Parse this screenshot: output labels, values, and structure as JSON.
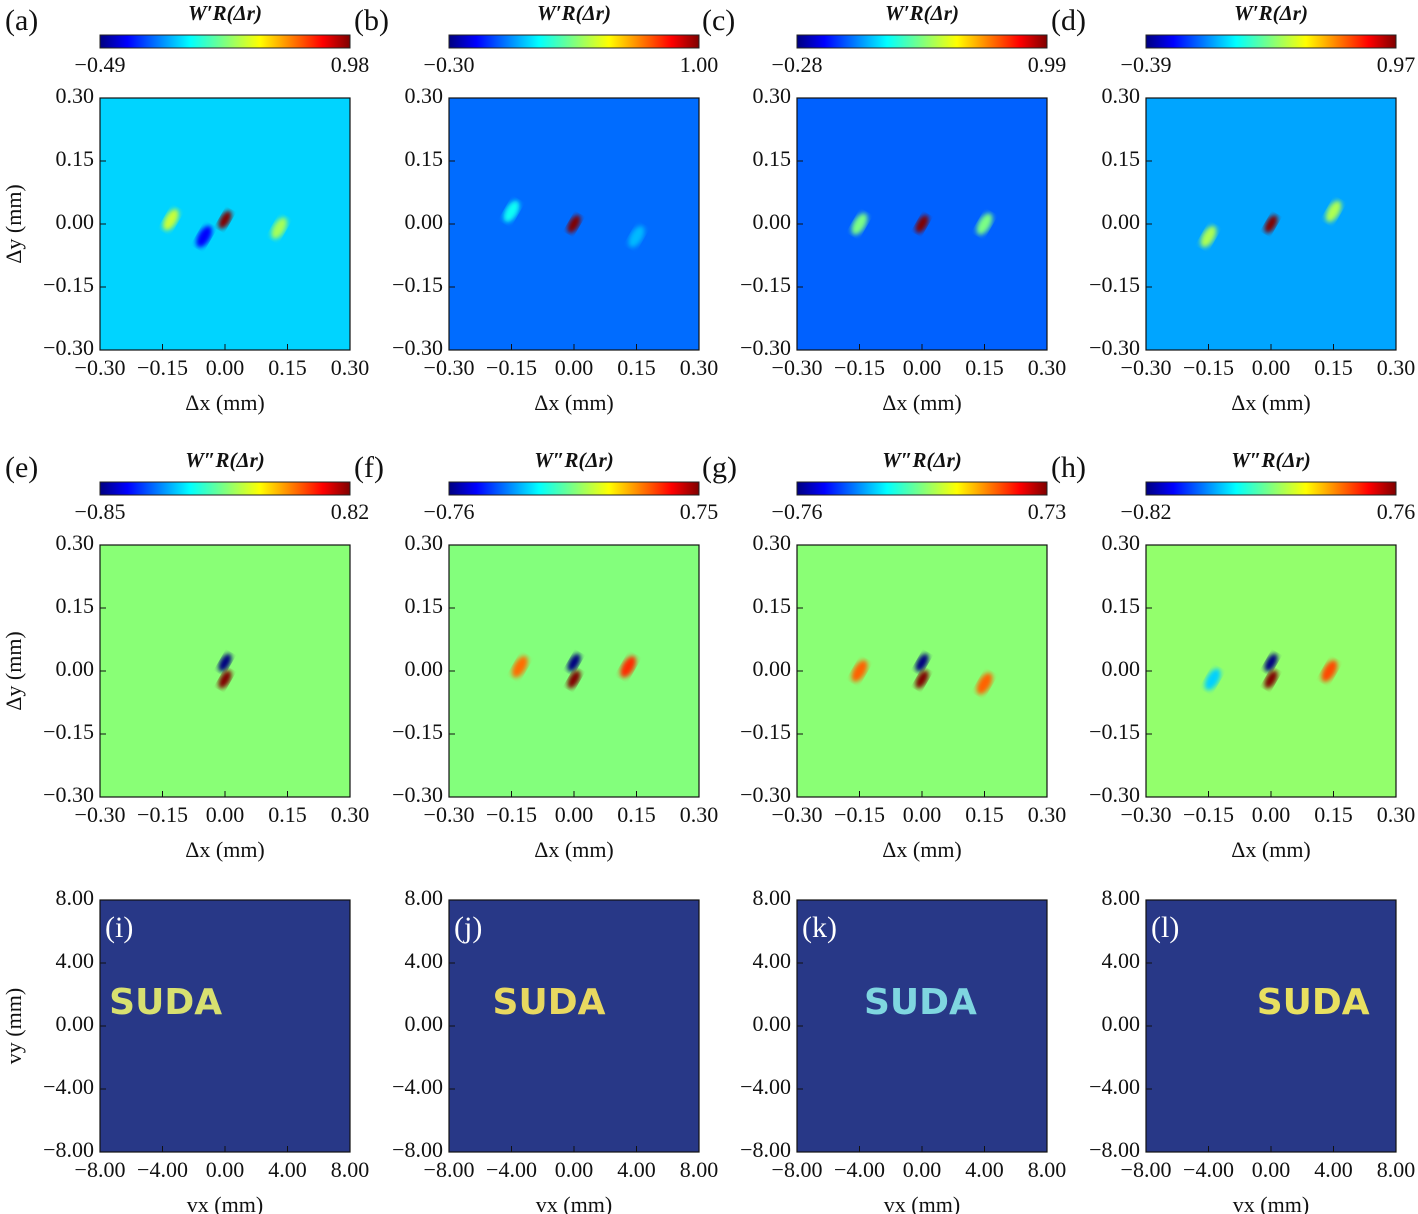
{
  "chart_data": [
    {
      "type": "heatmap",
      "panel": "(a)",
      "colorbar_label": "W′R(Δr)",
      "colorbar_ticks": [
        {
          "value": -0.49,
          "label": "−0.49"
        },
        {
          "value": 0.98,
          "label": "0.98"
        }
      ],
      "xlim": [
        -0.3,
        0.3
      ],
      "ylim": [
        -0.3,
        0.3
      ],
      "xticks": [
        {
          "value": -0.3,
          "label": "−0.30"
        },
        {
          "value": -0.15,
          "label": "−0.15"
        },
        {
          "value": 0,
          "label": "0.00"
        },
        {
          "value": 0.15,
          "label": "0.15"
        },
        {
          "value": 0.3,
          "label": "0.30"
        }
      ],
      "yticks": [
        {
          "value": -0.3,
          "label": "−0.30"
        },
        {
          "value": -0.15,
          "label": "−0.15"
        },
        {
          "value": 0,
          "label": "0.00"
        },
        {
          "value": 0.15,
          "label": "0.15"
        },
        {
          "value": 0.3,
          "label": "0.30"
        }
      ],
      "xlabel": "Δx (mm)",
      "ylabel": "Δy (mm)",
      "background": 0,
      "peaks": [
        {
          "x": 0,
          "y": 0.01,
          "value": 0.98
        },
        {
          "x": -0.13,
          "y": 0.01,
          "value": 0.35
        },
        {
          "x": 0.13,
          "y": -0.01,
          "value": 0.3
        },
        {
          "x": -0.05,
          "y": -0.03,
          "value": -0.3
        }
      ]
    },
    {
      "type": "heatmap",
      "panel": "(b)",
      "colorbar_label": "W′R(Δr)",
      "colorbar_ticks": [
        {
          "value": -0.3,
          "label": "−0.30"
        },
        {
          "value": 1,
          "label": "1.00"
        }
      ],
      "xlim": [
        -0.3,
        0.3
      ],
      "ylim": [
        -0.3,
        0.3
      ],
      "xticks": [
        {
          "value": -0.3,
          "label": "−0.30"
        },
        {
          "value": -0.15,
          "label": "−0.15"
        },
        {
          "value": 0,
          "label": "0.00"
        },
        {
          "value": 0.15,
          "label": "0.15"
        },
        {
          "value": 0.3,
          "label": "0.30"
        }
      ],
      "yticks": [
        {
          "value": -0.3,
          "label": "−0.30"
        },
        {
          "value": -0.15,
          "label": "−0.15"
        },
        {
          "value": 0,
          "label": "0.00"
        },
        {
          "value": 0.15,
          "label": "0.15"
        },
        {
          "value": 0.3,
          "label": "0.30"
        }
      ],
      "xlabel": "Δx (mm)",
      "background": 0,
      "peaks": [
        {
          "x": 0,
          "y": 0,
          "value": 1
        },
        {
          "x": -0.15,
          "y": 0.03,
          "value": 0.2
        },
        {
          "x": 0.15,
          "y": -0.03,
          "value": 0.1
        }
      ]
    },
    {
      "type": "heatmap",
      "panel": "(c)",
      "colorbar_label": "W′R(Δr)",
      "colorbar_ticks": [
        {
          "value": -0.28,
          "label": "−0.28"
        },
        {
          "value": 0.99,
          "label": "0.99"
        }
      ],
      "xlim": [
        -0.3,
        0.3
      ],
      "ylim": [
        -0.3,
        0.3
      ],
      "xticks": [
        {
          "value": -0.3,
          "label": "−0.30"
        },
        {
          "value": -0.15,
          "label": "−0.15"
        },
        {
          "value": 0,
          "label": "0.00"
        },
        {
          "value": 0.15,
          "label": "0.15"
        },
        {
          "value": 0.3,
          "label": "0.30"
        }
      ],
      "yticks": [
        {
          "value": -0.3,
          "label": "−0.30"
        },
        {
          "value": -0.15,
          "label": "−0.15"
        },
        {
          "value": 0,
          "label": "0.00"
        },
        {
          "value": 0.15,
          "label": "0.15"
        },
        {
          "value": 0.3,
          "label": "0.30"
        }
      ],
      "xlabel": "Δx (mm)",
      "background": 0,
      "peaks": [
        {
          "x": 0,
          "y": 0,
          "value": 0.99
        },
        {
          "x": -0.15,
          "y": 0,
          "value": 0.35
        },
        {
          "x": 0.15,
          "y": 0,
          "value": 0.35
        }
      ]
    },
    {
      "type": "heatmap",
      "panel": "(d)",
      "colorbar_label": "W′R(Δr)",
      "colorbar_ticks": [
        {
          "value": -0.39,
          "label": "−0.39"
        },
        {
          "value": 0.97,
          "label": "0.97"
        }
      ],
      "xlim": [
        -0.3,
        0.3
      ],
      "ylim": [
        -0.3,
        0.3
      ],
      "xticks": [
        {
          "value": -0.3,
          "label": "−0.30"
        },
        {
          "value": -0.15,
          "label": "−0.15"
        },
        {
          "value": 0,
          "label": "0.00"
        },
        {
          "value": 0.15,
          "label": "0.15"
        },
        {
          "value": 0.3,
          "label": "0.30"
        }
      ],
      "yticks": [
        {
          "value": -0.3,
          "label": "−0.30"
        },
        {
          "value": -0.15,
          "label": "−0.15"
        },
        {
          "value": 0,
          "label": "0.00"
        },
        {
          "value": 0.15,
          "label": "0.15"
        },
        {
          "value": 0.3,
          "label": "0.30"
        }
      ],
      "xlabel": "Δx (mm)",
      "background": 0,
      "peaks": [
        {
          "x": 0,
          "y": 0,
          "value": 0.97
        },
        {
          "x": -0.15,
          "y": -0.03,
          "value": 0.35
        },
        {
          "x": 0.15,
          "y": 0.03,
          "value": 0.35
        }
      ]
    },
    {
      "type": "heatmap",
      "panel": "(e)",
      "colorbar_label": "W″R(Δr)",
      "colorbar_ticks": [
        {
          "value": -0.85,
          "label": "−0.85"
        },
        {
          "value": 0.82,
          "label": "0.82"
        }
      ],
      "xlim": [
        -0.3,
        0.3
      ],
      "ylim": [
        -0.3,
        0.3
      ],
      "xticks": [
        {
          "value": -0.3,
          "label": "−0.30"
        },
        {
          "value": -0.15,
          "label": "−0.15"
        },
        {
          "value": 0,
          "label": "0.00"
        },
        {
          "value": 0.15,
          "label": "0.15"
        },
        {
          "value": 0.3,
          "label": "0.30"
        }
      ],
      "yticks": [
        {
          "value": -0.3,
          "label": "−0.30"
        },
        {
          "value": -0.15,
          "label": "−0.15"
        },
        {
          "value": 0,
          "label": "0.00"
        },
        {
          "value": 0.15,
          "label": "0.15"
        },
        {
          "value": 0.3,
          "label": "0.30"
        }
      ],
      "xlabel": "Δx (mm)",
      "ylabel": "Δy (mm)",
      "background": 0,
      "peaks": [
        {
          "x": 0,
          "y": 0.02,
          "value": -0.85
        },
        {
          "x": 0,
          "y": -0.02,
          "value": 0.82
        }
      ]
    },
    {
      "type": "heatmap",
      "panel": "(f)",
      "colorbar_label": "W″R(Δr)",
      "colorbar_ticks": [
        {
          "value": -0.76,
          "label": "−0.76"
        },
        {
          "value": 0.75,
          "label": "0.75"
        }
      ],
      "xlim": [
        -0.3,
        0.3
      ],
      "ylim": [
        -0.3,
        0.3
      ],
      "xticks": [
        {
          "value": -0.3,
          "label": "−0.30"
        },
        {
          "value": -0.15,
          "label": "−0.15"
        },
        {
          "value": 0,
          "label": "0.00"
        },
        {
          "value": 0.15,
          "label": "0.15"
        },
        {
          "value": 0.3,
          "label": "0.30"
        }
      ],
      "yticks": [
        {
          "value": -0.3,
          "label": "−0.30"
        },
        {
          "value": -0.15,
          "label": "−0.15"
        },
        {
          "value": 0,
          "label": "0.00"
        },
        {
          "value": 0.15,
          "label": "0.15"
        },
        {
          "value": 0.3,
          "label": "0.30"
        }
      ],
      "xlabel": "Δx (mm)",
      "background": 0,
      "peaks": [
        {
          "x": 0,
          "y": 0.02,
          "value": -0.76
        },
        {
          "x": 0,
          "y": -0.02,
          "value": 0.75
        },
        {
          "x": 0.13,
          "y": 0.01,
          "value": 0.5
        },
        {
          "x": -0.13,
          "y": 0.01,
          "value": 0.4
        }
      ]
    },
    {
      "type": "heatmap",
      "panel": "(g)",
      "colorbar_label": "W″R(Δr)",
      "colorbar_ticks": [
        {
          "value": -0.76,
          "label": "−0.76"
        },
        {
          "value": 0.73,
          "label": "0.73"
        }
      ],
      "xlim": [
        -0.3,
        0.3
      ],
      "ylim": [
        -0.3,
        0.3
      ],
      "xticks": [
        {
          "value": -0.3,
          "label": "−0.30"
        },
        {
          "value": -0.15,
          "label": "−0.15"
        },
        {
          "value": 0,
          "label": "0.00"
        },
        {
          "value": 0.15,
          "label": "0.15"
        },
        {
          "value": 0.3,
          "label": "0.30"
        }
      ],
      "yticks": [
        {
          "value": -0.3,
          "label": "−0.30"
        },
        {
          "value": -0.15,
          "label": "−0.15"
        },
        {
          "value": 0,
          "label": "0.00"
        },
        {
          "value": 0.15,
          "label": "0.15"
        },
        {
          "value": 0.3,
          "label": "0.30"
        }
      ],
      "xlabel": "Δx (mm)",
      "background": 0,
      "peaks": [
        {
          "x": 0,
          "y": 0.02,
          "value": -0.76
        },
        {
          "x": 0,
          "y": -0.02,
          "value": 0.73
        },
        {
          "x": -0.15,
          "y": 0,
          "value": 0.4
        },
        {
          "x": 0.15,
          "y": -0.03,
          "value": 0.4
        }
      ]
    },
    {
      "type": "heatmap",
      "panel": "(h)",
      "colorbar_label": "W″R(Δr)",
      "colorbar_ticks": [
        {
          "value": -0.82,
          "label": "−0.82"
        },
        {
          "value": 0.76,
          "label": "0.76"
        }
      ],
      "xlim": [
        -0.3,
        0.3
      ],
      "ylim": [
        -0.3,
        0.3
      ],
      "xticks": [
        {
          "value": -0.3,
          "label": "−0.30"
        },
        {
          "value": -0.15,
          "label": "−0.15"
        },
        {
          "value": 0,
          "label": "0.00"
        },
        {
          "value": 0.15,
          "label": "0.15"
        },
        {
          "value": 0.3,
          "label": "0.30"
        }
      ],
      "yticks": [
        {
          "value": -0.3,
          "label": "−0.30"
        },
        {
          "value": -0.15,
          "label": "−0.15"
        },
        {
          "value": 0,
          "label": "0.00"
        },
        {
          "value": 0.15,
          "label": "0.15"
        },
        {
          "value": 0.3,
          "label": "0.30"
        }
      ],
      "xlabel": "Δx (mm)",
      "background": 0,
      "peaks": [
        {
          "x": 0,
          "y": 0.02,
          "value": -0.82
        },
        {
          "x": 0,
          "y": -0.02,
          "value": 0.76
        },
        {
          "x": 0.14,
          "y": 0,
          "value": 0.45
        },
        {
          "x": -0.14,
          "y": -0.02,
          "value": -0.3
        }
      ]
    },
    {
      "type": "heatmap",
      "panel": "(i)",
      "xlim": [
        -8,
        8
      ],
      "ylim": [
        -8,
        8
      ],
      "xticks": [
        {
          "value": -8,
          "label": "−8.00"
        },
        {
          "value": -4,
          "label": "−4.00"
        },
        {
          "value": 0,
          "label": "0.00"
        },
        {
          "value": 4,
          "label": "4.00"
        },
        {
          "value": 8,
          "label": "8.00"
        }
      ],
      "yticks": [
        {
          "value": -8,
          "label": "−8.00"
        },
        {
          "value": -4,
          "label": "−4.00"
        },
        {
          "value": 0,
          "label": "0.00"
        },
        {
          "value": 4,
          "label": "4.00"
        },
        {
          "value": 8,
          "label": "8.00"
        }
      ],
      "xlabel": "vx (mm)",
      "ylabel": "vy (mm)",
      "background_color": "#283887",
      "annotations": [
        {
          "text": "SUDA",
          "x": -3.8,
          "y": 1.4,
          "color": "#d8e070"
        }
      ]
    },
    {
      "type": "heatmap",
      "panel": "(j)",
      "xlim": [
        -8,
        8
      ],
      "ylim": [
        -8,
        8
      ],
      "xticks": [
        {
          "value": -8,
          "label": "−8.00"
        },
        {
          "value": -4,
          "label": "−4.00"
        },
        {
          "value": 0,
          "label": "0.00"
        },
        {
          "value": 4,
          "label": "4.00"
        },
        {
          "value": 8,
          "label": "8.00"
        }
      ],
      "yticks": [
        {
          "value": -8,
          "label": "−8.00"
        },
        {
          "value": -4,
          "label": "−4.00"
        },
        {
          "value": 0,
          "label": "0.00"
        },
        {
          "value": 4,
          "label": "4.00"
        },
        {
          "value": 8,
          "label": "8.00"
        }
      ],
      "xlabel": "vx (mm)",
      "background_color": "#283887",
      "annotations": [
        {
          "text": "SUDA",
          "x": -1.6,
          "y": 1.4,
          "color": "#e8d860"
        }
      ]
    },
    {
      "type": "heatmap",
      "panel": "(k)",
      "xlim": [
        -8,
        8
      ],
      "ylim": [
        -8,
        8
      ],
      "xticks": [
        {
          "value": -8,
          "label": "−8.00"
        },
        {
          "value": -4,
          "label": "−4.00"
        },
        {
          "value": 0,
          "label": "0.00"
        },
        {
          "value": 4,
          "label": "4.00"
        },
        {
          "value": 8,
          "label": "8.00"
        }
      ],
      "yticks": [
        {
          "value": -8,
          "label": "−8.00"
        },
        {
          "value": -4,
          "label": "−4.00"
        },
        {
          "value": 0,
          "label": "0.00"
        },
        {
          "value": 4,
          "label": "4.00"
        },
        {
          "value": 8,
          "label": "8.00"
        }
      ],
      "xlabel": "vx (mm)",
      "background_color": "#283887",
      "annotations": [
        {
          "text": "SUDA",
          "x": -0.1,
          "y": 1.4,
          "color": "#7fd6e0"
        }
      ]
    },
    {
      "type": "heatmap",
      "panel": "(l)",
      "xlim": [
        -8,
        8
      ],
      "ylim": [
        -8,
        8
      ],
      "xticks": [
        {
          "value": -8,
          "label": "−8.00"
        },
        {
          "value": -4,
          "label": "−4.00"
        },
        {
          "value": 0,
          "label": "0.00"
        },
        {
          "value": 4,
          "label": "4.00"
        },
        {
          "value": 8,
          "label": "8.00"
        }
      ],
      "yticks": [
        {
          "value": -8,
          "label": "−8.00"
        },
        {
          "value": -4,
          "label": "−4.00"
        },
        {
          "value": 0,
          "label": "0.00"
        },
        {
          "value": 4,
          "label": "4.00"
        },
        {
          "value": 8,
          "label": "8.00"
        }
      ],
      "xlabel": "vx (mm)",
      "background_color": "#283887",
      "annotations": [
        {
          "text": "SUDA",
          "x": 2.7,
          "y": 1.4,
          "color": "#e8e060"
        }
      ]
    }
  ]
}
